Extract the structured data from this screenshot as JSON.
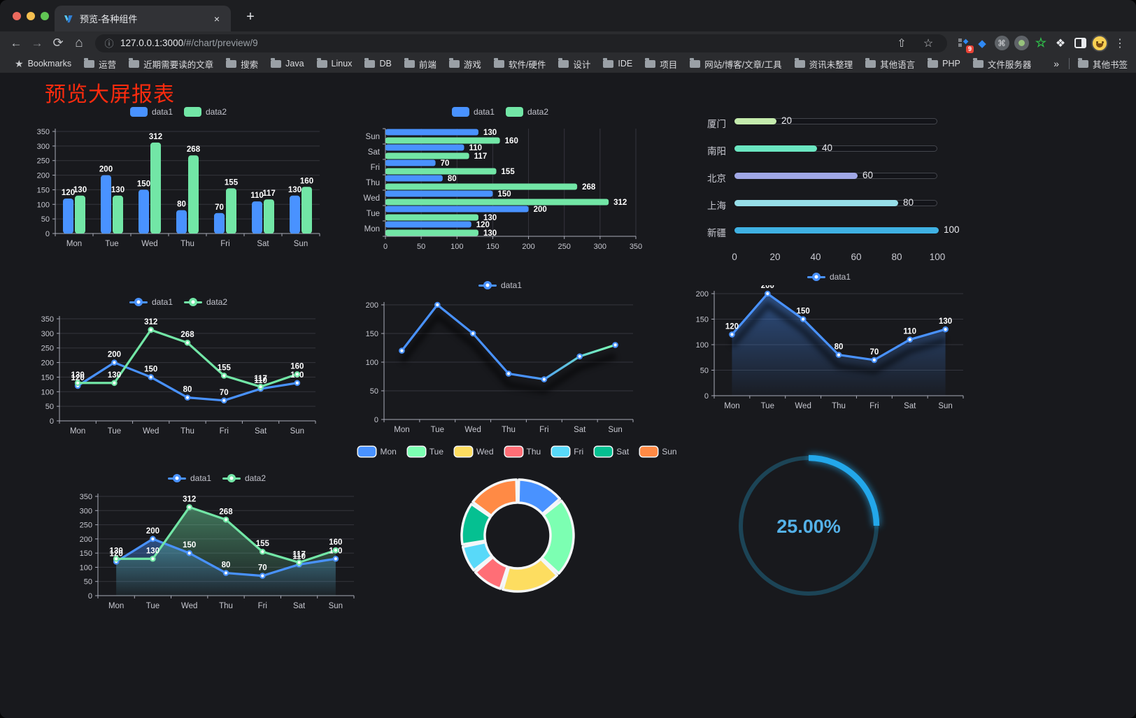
{
  "browser": {
    "tab_title": "预览-各种组件",
    "close_tab": "×",
    "new_tab": "+",
    "url_host": "127.0.0.1:3000",
    "url_path": "/#/chart/preview/9",
    "ext_badge": "9",
    "bookmarks_bar": {
      "root": "Bookmarks",
      "folders": [
        "运营",
        "近期需要读的文章",
        "搜索",
        "Java",
        "Linux",
        "DB",
        "前端",
        "游戏",
        "软件/硬件",
        "设计",
        "IDE",
        "项目",
        "网站/博客/文章/工具",
        "资讯未整理",
        "其他语言",
        "PHP",
        "文件服务器"
      ],
      "overflow": "»",
      "other": "其他书签"
    }
  },
  "page": {
    "title": "预览大屏报表"
  },
  "chart_data": [
    {
      "id": "c1",
      "type": "bar",
      "categories": [
        "Mon",
        "Tue",
        "Wed",
        "Thu",
        "Fri",
        "Sat",
        "Sun"
      ],
      "series": [
        {
          "name": "data1",
          "color": "#4992ff",
          "values": [
            120,
            200,
            150,
            80,
            70,
            110,
            130
          ]
        },
        {
          "name": "data2",
          "color": "#72e6a6",
          "values": [
            130,
            130,
            312,
            268,
            155,
            117,
            160
          ]
        }
      ],
      "ylim": [
        0,
        350
      ],
      "ystep": 50,
      "legend_position": "top",
      "grid": true
    },
    {
      "id": "c2",
      "type": "hbar",
      "categories": [
        "Mon",
        "Tue",
        "Wed",
        "Thu",
        "Fri",
        "Sat",
        "Sun"
      ],
      "series": [
        {
          "name": "data1",
          "color": "#4992ff",
          "values": [
            120,
            200,
            150,
            80,
            70,
            110,
            130
          ]
        },
        {
          "name": "data2",
          "color": "#72e6a6",
          "values": [
            130,
            130,
            312,
            268,
            155,
            117,
            160
          ]
        }
      ],
      "xlim": [
        0,
        350
      ],
      "xstep": 50,
      "legend_position": "top"
    },
    {
      "id": "c3",
      "type": "progress",
      "xlim": [
        0,
        100
      ],
      "xticks": [
        0,
        20,
        40,
        60,
        80,
        100
      ],
      "items": [
        {
          "label": "厦门",
          "value": 20,
          "color": "#c4ebad"
        },
        {
          "label": "南阳",
          "value": 40,
          "color": "#6be6c1"
        },
        {
          "label": "北京",
          "value": 60,
          "color": "#a0a7e6"
        },
        {
          "label": "上海",
          "value": 80,
          "color": "#96dee8"
        },
        {
          "label": "新疆",
          "value": 100,
          "color": "#3fb1e3"
        }
      ]
    },
    {
      "id": "c4",
      "type": "line",
      "categories": [
        "Mon",
        "Tue",
        "Wed",
        "Thu",
        "Fri",
        "Sat",
        "Sun"
      ],
      "series": [
        {
          "name": "data1",
          "color": "#4992ff",
          "values": [
            120,
            200,
            150,
            80,
            70,
            110,
            130
          ]
        },
        {
          "name": "data2",
          "color": "#72e6a6",
          "values": [
            130,
            130,
            312,
            268,
            155,
            117,
            160
          ]
        }
      ],
      "ylim": [
        0,
        350
      ],
      "ystep": 50,
      "point_labels": true,
      "legend_position": "top"
    },
    {
      "id": "c5",
      "type": "line",
      "categories": [
        "Mon",
        "Tue",
        "Wed",
        "Thu",
        "Fri",
        "Sat",
        "Sun"
      ],
      "series": [
        {
          "name": "data1",
          "color": "#4992ff",
          "color_end": "#7cffb2",
          "values": [
            120,
            200,
            150,
            80,
            70,
            110,
            130
          ]
        }
      ],
      "ylim": [
        0,
        200
      ],
      "ystep": 50,
      "point_labels": false,
      "shadow": true,
      "legend_position": "top"
    },
    {
      "id": "c6",
      "type": "line",
      "categories": [
        "Mon",
        "Tue",
        "Wed",
        "Thu",
        "Fri",
        "Sat",
        "Sun"
      ],
      "series": [
        {
          "name": "data1",
          "color": "#4992ff",
          "values": [
            120,
            200,
            150,
            80,
            70,
            110,
            130
          ],
          "area": true
        }
      ],
      "ylim": [
        0,
        200
      ],
      "ystep": 50,
      "point_labels": true,
      "shadow": true,
      "legend_position": "top"
    },
    {
      "id": "c7",
      "type": "line",
      "categories": [
        "Mon",
        "Tue",
        "Wed",
        "Thu",
        "Fri",
        "Sat",
        "Sun"
      ],
      "series": [
        {
          "name": "data1",
          "color": "#4992ff",
          "values": [
            120,
            200,
            150,
            80,
            70,
            110,
            130
          ],
          "area": true
        },
        {
          "name": "data2",
          "color": "#72e6a6",
          "values": [
            130,
            130,
            312,
            268,
            155,
            117,
            160
          ],
          "area": true
        }
      ],
      "ylim": [
        0,
        350
      ],
      "ystep": 50,
      "point_labels": true,
      "legend_position": "top"
    },
    {
      "id": "c8",
      "type": "pie",
      "shape": "donut",
      "legend_position": "top",
      "categories": [
        "Mon",
        "Tue",
        "Wed",
        "Thu",
        "Fri",
        "Sat",
        "Sun"
      ],
      "values": [
        120,
        200,
        150,
        80,
        70,
        110,
        130
      ],
      "colors": [
        "#4992ff",
        "#7cffb2",
        "#fddd60",
        "#ff6e76",
        "#58d9f9",
        "#05c091",
        "#ff8a45"
      ]
    },
    {
      "id": "c9",
      "type": "gauge",
      "value": 25,
      "label": "25.00%",
      "track_color": "#1c4456",
      "progress_color": "#23a7ea",
      "label_color": "#54b1e8"
    }
  ]
}
